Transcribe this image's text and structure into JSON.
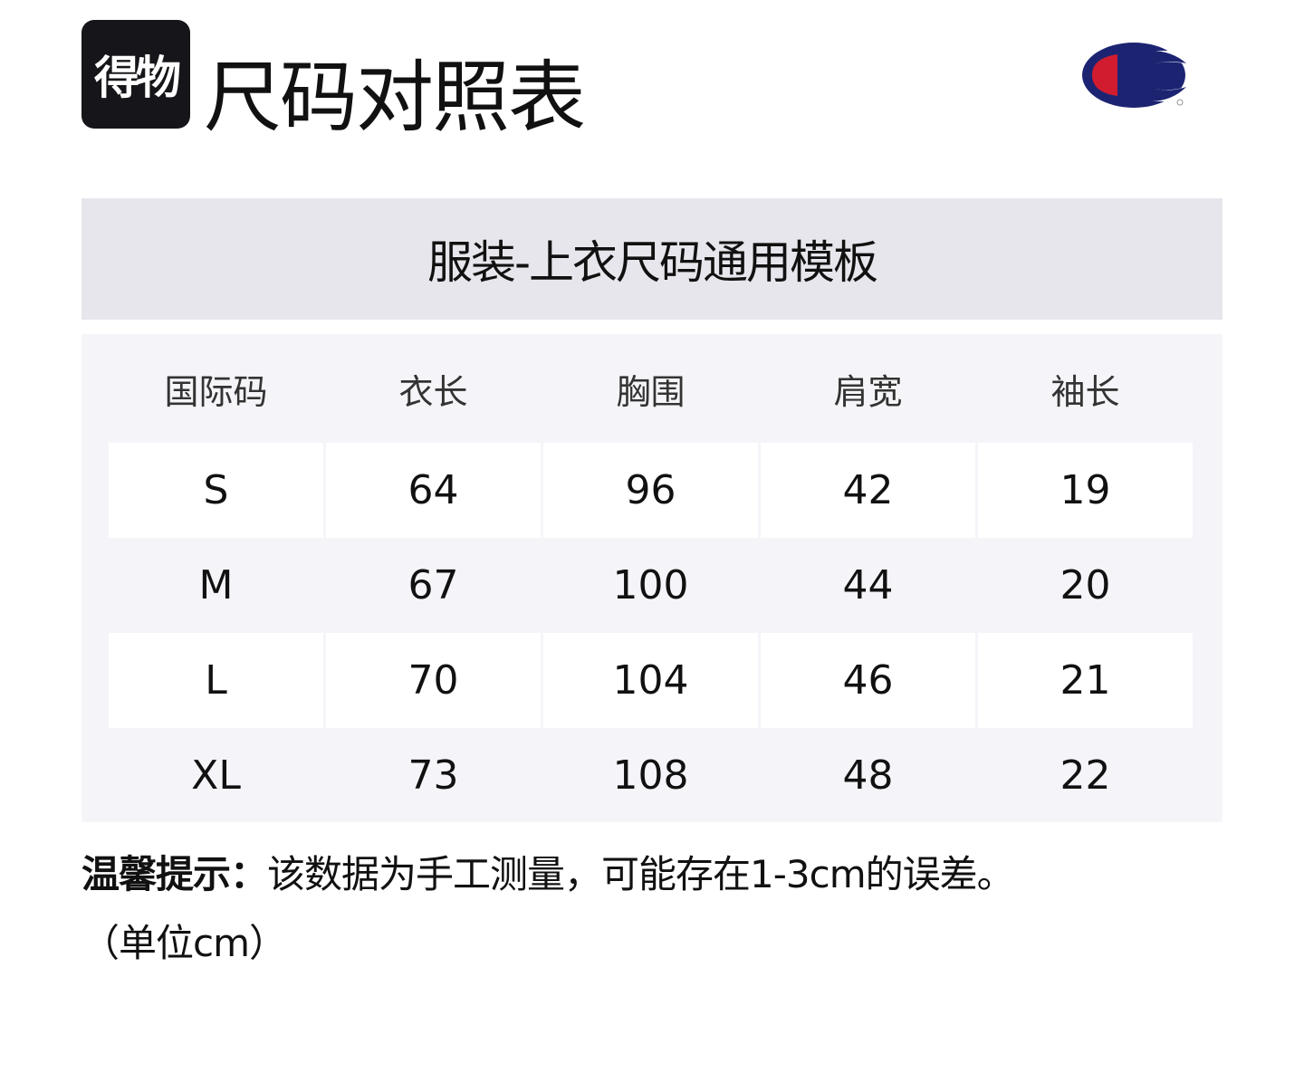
{
  "header": {
    "app_logo_text": "得物",
    "title": "尺码对照表",
    "brand_logo": "champion-logo",
    "brand_colors": {
      "navy": "#1c2472",
      "red": "#d01c2e"
    }
  },
  "band_title": "服装-上衣尺码通用模板",
  "table": {
    "columns": [
      "国际码",
      "衣长",
      "胸围",
      "肩宽",
      "袖长"
    ],
    "rows": [
      [
        "S",
        "64",
        "96",
        "42",
        "19"
      ],
      [
        "M",
        "67",
        "100",
        "44",
        "20"
      ],
      [
        "L",
        "70",
        "104",
        "46",
        "21"
      ],
      [
        "XL",
        "73",
        "108",
        "48",
        "22"
      ]
    ]
  },
  "note": {
    "label": "温馨提示：",
    "text": "该数据为手工测量，可能存在1-3cm的误差。",
    "unit": "（单位cm）"
  }
}
